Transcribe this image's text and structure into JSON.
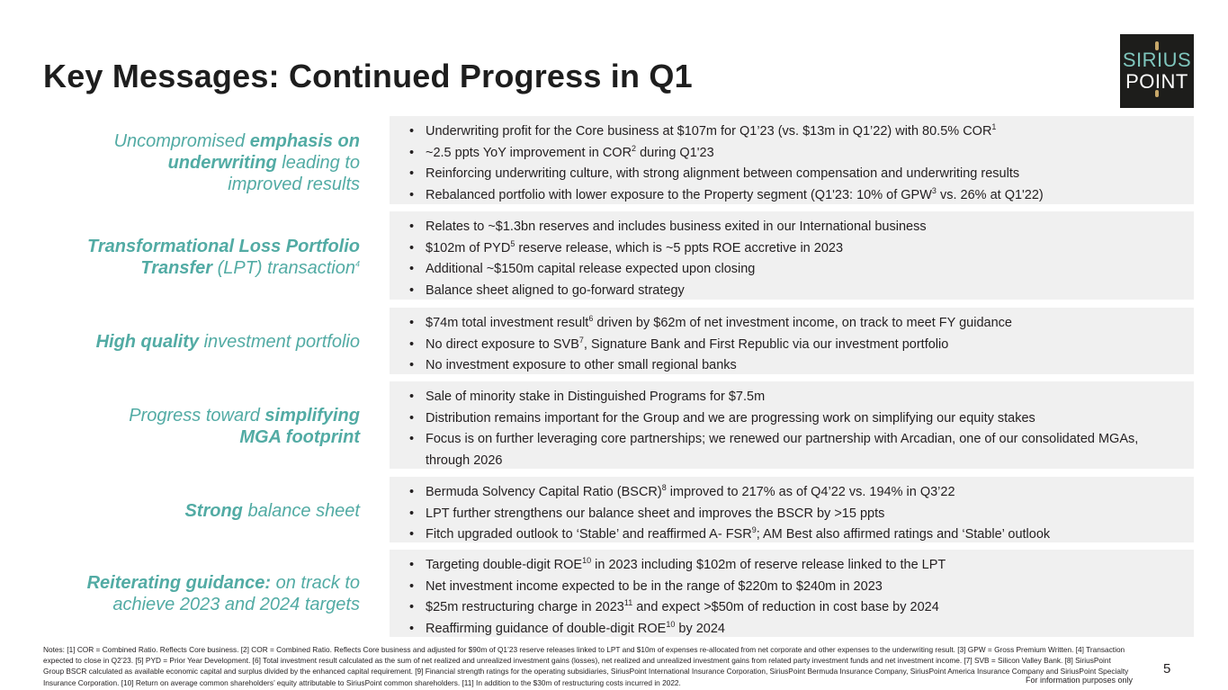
{
  "title": "Key Messages: Continued Progress in Q1",
  "logo": {
    "line1": "SIRIUS",
    "line2": "POINT"
  },
  "rows": [
    {
      "label_bold": "emphasis on",
      "bullets": [
        "Underwriting profit for the Core business at $107m for Q1’23 (vs. $13m in Q1’22) with 80.5% COR",
        "~2.5 ppts YoY improvement in COR",
        "Reinforcing underwriting culture, with strong alignment between compensation and underwriting results",
        "Rebalanced portfolio with lower exposure to the Property segment (Q1’23: 10% of GPW"
      ]
    }
  ],
  "labels": {
    "r1_a": "Uncompromised ",
    "r1_b": "emphasis on",
    "r1_c": "underwriting",
    "r1_d": " leading to",
    "r1_e": "improved results",
    "r2_a": "Transformational Loss Portfolio",
    "r2_b": "Transfer",
    "r2_c": " (LPT) transaction",
    "r2_sup": "4",
    "r3_a": "High quality",
    "r3_b": " investment portfolio",
    "r4_a": "Progress toward ",
    "r4_b": "simplifying",
    "r4_c": "MGA footprint",
    "r5_a": "Strong",
    "r5_b": " balance sheet",
    "r6_a": "Reiterating guidance:",
    "r6_b": " on track to",
    "r6_c": "achieve 2023 and 2024 targets"
  },
  "b1": {
    "l1": "Underwriting profit for the Core business at $107m for Q1’23 (vs. $13m in Q1’22) with 80.5% COR",
    "l1_sup": "1",
    "l2a": "~2.5 ppts YoY improvement in COR",
    "l2_sup": "2",
    "l2b": " during Q1'23",
    "l3": "Reinforcing underwriting culture, with strong alignment between compensation and underwriting results",
    "l4a": "Rebalanced portfolio with lower exposure to the Property segment (Q1'23: 10% of GPW",
    "l4_sup": "3",
    "l4b": " vs. 26% at Q1'22)"
  },
  "b2": {
    "l1": "Relates to ~$1.3bn reserves and includes business exited in our International business",
    "l2a": "$102m of PYD",
    "l2_sup": "5",
    "l2b": " reserve release, which is ~5 ppts ROE accretive in 2023",
    "l3": "Additional ~$150m capital release expected upon closing",
    "l4": "Balance sheet aligned to go-forward strategy"
  },
  "b3": {
    "l1a": "$74m total investment result",
    "l1_sup": "6",
    "l1b": " driven by $62m of net investment income, on track to meet FY guidance",
    "l2a": "No direct exposure to SVB",
    "l2_sup": "7",
    "l2b": ", Signature Bank and First Republic via our investment portfolio",
    "l3": "No investment exposure to other small regional banks"
  },
  "b4": {
    "l1": "Sale of minority stake in Distinguished Programs for $7.5m",
    "l2": "Distribution remains important for the Group and we are progressing work on simplifying our equity stakes",
    "l3": "Focus is on further leveraging core partnerships; we renewed our partnership with Arcadian, one of our consolidated MGAs, through 2026"
  },
  "b5": {
    "l1a": "Bermuda Solvency Capital Ratio (BSCR)",
    "l1_sup": "8",
    "l1b": " improved to 217% as of Q4’22 vs. 194% in Q3’22",
    "l2": "LPT further strengthens our balance sheet and improves the BSCR by >15 ppts",
    "l3a": "Fitch upgraded outlook to ‘Stable’ and reaffirmed A- FSR",
    "l3_sup": "9",
    "l3b": "; AM Best also affirmed ratings and ‘Stable’ outlook"
  },
  "b6": {
    "l1a": "Targeting double-digit ROE",
    "l1_sup": "10",
    "l1b": " in 2023 including $102m of reserve release linked to the LPT",
    "l2": "Net investment income expected to be in the range of $220m to $240m in 2023",
    "l3a": "$25m restructuring charge in 2023",
    "l3_sup": "11",
    "l3b": " and expect >$50m of reduction in cost base by 2024",
    "l4a": "Reaffirming guidance of double-digit ROE",
    "l4_sup": "10",
    "l4b": " by 2024"
  },
  "notes": "Notes: [1] COR = Combined Ratio. Reflects Core business. [2] COR = Combined Ratio. Reflects Core business and adjusted for $90m of Q1’23 reserve releases linked to LPT and $10m of expenses re-allocated from net corporate and other expenses to the underwriting result. [3] GPW = Gross Premium Written. [4] Transaction expected to close in Q2’23. [5] PYD = Prior Year Development. [6] Total investment result calculated as the sum of net realized and unrealized investment gains (losses), net realized and unrealized investment gains from related party investment funds and net investment income. [7] SVB = Silicon Valley Bank. [8] SiriusPoint Group BSCR calculated as available economic capital and surplus divided by the enhanced capital requirement. [9] Financial strength ratings for the operating subsidiaries, SiriusPoint International Insurance Corporation, SiriusPoint Bermuda Insurance Company, SiriusPoint America Insurance Company and SiriusPoint Specialty Insurance Corporation. [10] Return on average common shareholders’ equity attributable to SiriusPoint common shareholders. [11] In addition to the $30m of restructuring costs incurred in 2022.",
  "page_number": "5",
  "info_only": "For information purposes only"
}
